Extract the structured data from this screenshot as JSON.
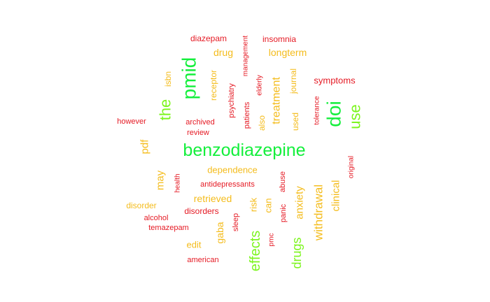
{
  "palette": {
    "green": "#14ef3c",
    "lime": "#7cf51e",
    "gold": "#f4bc1c",
    "orange": "#f49a08",
    "red": "#e51a24"
  },
  "words": [
    {
      "text": "benzodiazepine",
      "color": "green"
    },
    {
      "text": "pmid",
      "color": "green"
    },
    {
      "text": "doi",
      "color": "green"
    },
    {
      "text": "use",
      "color": "lime"
    },
    {
      "text": "the",
      "color": "lime"
    },
    {
      "text": "effects",
      "color": "lime"
    },
    {
      "text": "drugs",
      "color": "lime"
    },
    {
      "text": "withdrawal",
      "color": "gold"
    },
    {
      "text": "treatment",
      "color": "gold"
    },
    {
      "text": "anxiety",
      "color": "gold"
    },
    {
      "text": "clinical",
      "color": "gold"
    },
    {
      "text": "longterm",
      "color": "gold"
    },
    {
      "text": "drug",
      "color": "gold"
    },
    {
      "text": "may",
      "color": "gold"
    },
    {
      "text": "pdf",
      "color": "gold"
    },
    {
      "text": "retrieved",
      "color": "gold"
    },
    {
      "text": "gaba",
      "color": "gold"
    },
    {
      "text": "dependence",
      "color": "gold"
    },
    {
      "text": "journal",
      "color": "gold"
    },
    {
      "text": "receptor",
      "color": "gold"
    },
    {
      "text": "isbn",
      "color": "gold"
    },
    {
      "text": "used",
      "color": "gold"
    },
    {
      "text": "also",
      "color": "gold"
    },
    {
      "text": "edit",
      "color": "gold"
    },
    {
      "text": "risk",
      "color": "gold"
    },
    {
      "text": "can",
      "color": "gold"
    },
    {
      "text": "disorder",
      "color": "gold"
    },
    {
      "text": "symptoms",
      "color": "red"
    },
    {
      "text": "insomnia",
      "color": "red"
    },
    {
      "text": "diazepam",
      "color": "red"
    },
    {
      "text": "management",
      "color": "red"
    },
    {
      "text": "psychiatry",
      "color": "red"
    },
    {
      "text": "elderly",
      "color": "red"
    },
    {
      "text": "patients",
      "color": "red"
    },
    {
      "text": "tolerance",
      "color": "red"
    },
    {
      "text": "however",
      "color": "red"
    },
    {
      "text": "archived",
      "color": "red"
    },
    {
      "text": "review",
      "color": "red"
    },
    {
      "text": "health",
      "color": "red"
    },
    {
      "text": "antidepressants",
      "color": "red"
    },
    {
      "text": "abuse",
      "color": "red"
    },
    {
      "text": "original",
      "color": "red"
    },
    {
      "text": "disorders",
      "color": "red"
    },
    {
      "text": "alcohol",
      "color": "red"
    },
    {
      "text": "temazepam",
      "color": "red"
    },
    {
      "text": "sleep",
      "color": "red"
    },
    {
      "text": "panic",
      "color": "red"
    },
    {
      "text": "pmc",
      "color": "red"
    },
    {
      "text": "american",
      "color": "red"
    }
  ]
}
